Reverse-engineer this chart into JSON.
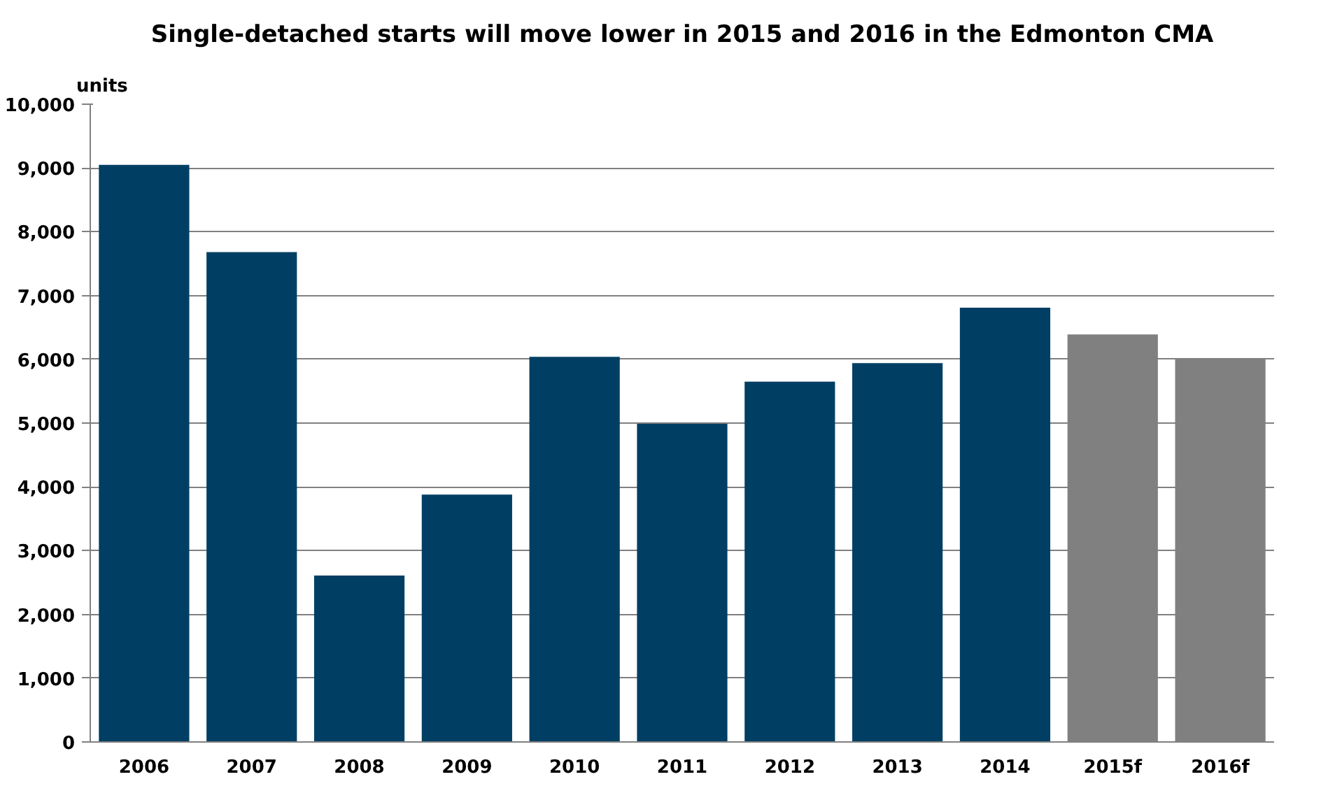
{
  "chart_data": {
    "type": "bar",
    "title": "Single-detached starts will move lower in 2015 and 2016 in the Edmonton CMA",
    "ylabel": "units",
    "categories": [
      "2006",
      "2007",
      "2008",
      "2009",
      "2010",
      "2011",
      "2012",
      "2013",
      "2014",
      "2015f",
      "2016f"
    ],
    "values": [
      9050,
      7680,
      2610,
      3880,
      6040,
      4990,
      5650,
      5940,
      6810,
      6390,
      6000
    ],
    "colors": [
      "#003f63",
      "#003f63",
      "#003f63",
      "#003f63",
      "#003f63",
      "#003f63",
      "#003f63",
      "#003f63",
      "#003f63",
      "#808080",
      "#808080"
    ],
    "ylim": [
      0,
      10000
    ],
    "yticks": [
      0,
      {
        "value": 1000,
        "label": "1,000"
      },
      {
        "value": 2000,
        "label": "2,000"
      },
      {
        "value": 3000,
        "label": "3,000"
      },
      {
        "value": 4000,
        "label": "4,000"
      },
      {
        "value": 5000,
        "label": "5,000"
      },
      {
        "value": 6000,
        "label": "6,000"
      },
      {
        "value": 7000,
        "label": "7,000"
      },
      {
        "value": 8000,
        "label": "8,000"
      },
      {
        "value": 9000,
        "label": "9,000"
      },
      {
        "value": 10000,
        "label": "10,000"
      }
    ],
    "grid": "y"
  }
}
